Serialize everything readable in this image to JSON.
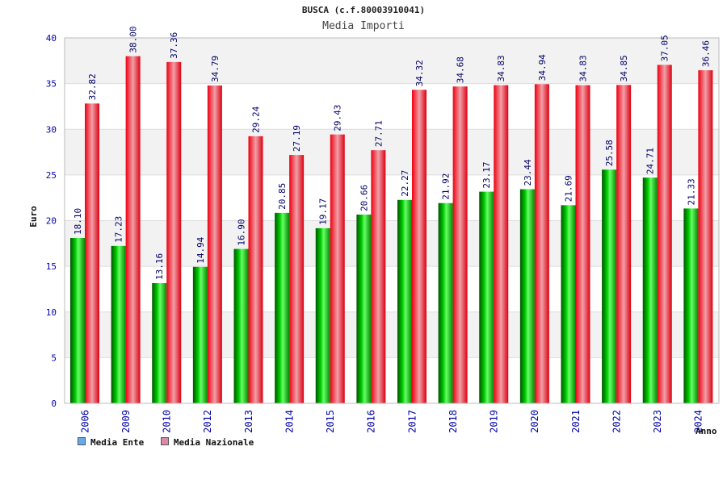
{
  "chart_data": {
    "type": "bar",
    "title": "BUSCA (c.f.80003910041)",
    "subtitle": "Media Importi",
    "ylabel": "Euro",
    "xlabel": "Anno",
    "ylim": [
      0,
      40
    ],
    "yticks": [
      0,
      5,
      10,
      15,
      20,
      25,
      30,
      35,
      40
    ],
    "categories": [
      "2006",
      "2009",
      "2010",
      "2012",
      "2013",
      "2014",
      "2015",
      "2016",
      "2017",
      "2018",
      "2019",
      "2020",
      "2021",
      "2022",
      "2023",
      "2024"
    ],
    "series": [
      {
        "name": "Media Ente",
        "values": [
          18.1,
          17.23,
          13.16,
          14.94,
          16.9,
          20.85,
          19.17,
          20.66,
          22.27,
          21.92,
          23.17,
          23.44,
          21.69,
          25.58,
          24.71,
          21.33
        ],
        "labels": [
          "18.10",
          "17.23",
          "13.16",
          "14.94",
          "16.90",
          "20.85",
          "19.17",
          "20.66",
          "22.27",
          "21.92",
          "23.17",
          "23.44",
          "21.69",
          "25.58",
          "24.71",
          "21.33"
        ]
      },
      {
        "name": "Media Nazionale",
        "values": [
          32.82,
          38.0,
          37.36,
          34.79,
          29.24,
          27.19,
          29.43,
          27.71,
          34.32,
          34.68,
          34.83,
          34.94,
          34.83,
          34.85,
          37.05,
          36.46
        ],
        "labels": [
          "32.82",
          "38.00",
          "37.36",
          "34.79",
          "29.24",
          "27.19",
          "29.43",
          "27.71",
          "34.32",
          "34.68",
          "34.83",
          "34.94",
          "34.83",
          "34.85",
          "37.05",
          "36.46"
        ]
      }
    ],
    "legend_position": "bottom-left",
    "grid": true,
    "colors": {
      "ente": "#00aa00",
      "nazionale": "#ee1122",
      "legend_ente": "#66aaee",
      "legend_nazionale": "#dd88aa",
      "tick_text": "#0000aa",
      "band": "#f2f2f2"
    }
  }
}
